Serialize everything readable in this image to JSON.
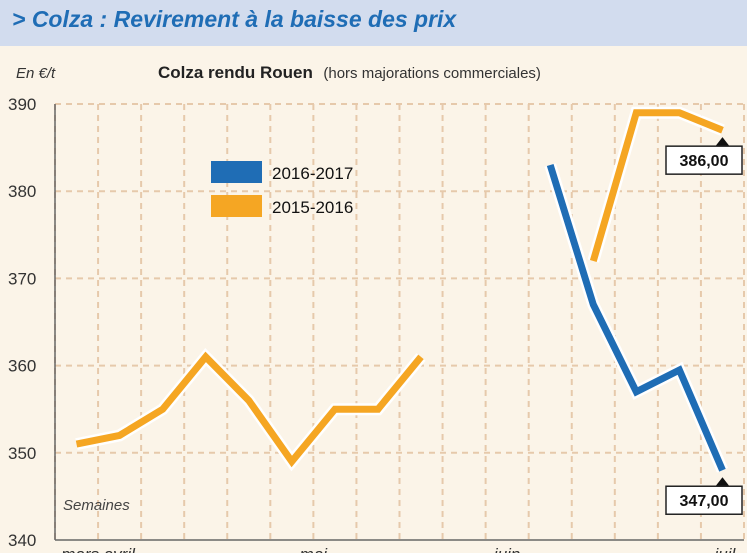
{
  "header": {
    "title": "> Colza : Revirement à la baisse des prix"
  },
  "chart_data": {
    "type": "line",
    "unit_label": "En €/t",
    "title": "Colza rendu Rouen",
    "subtitle": "(hors majorations commerciales)",
    "xlabel": "Semaines",
    "ylim": [
      340,
      390
    ],
    "yticks": [
      340,
      350,
      360,
      370,
      380,
      390
    ],
    "x_range": [
      0,
      16
    ],
    "x_tick_labels": [
      {
        "label": "mars avril",
        "x": 1
      },
      {
        "label": "mai",
        "x": 6
      },
      {
        "label": "juin",
        "x": 10.5
      },
      {
        "label": "juil.",
        "x": 16
      }
    ],
    "grid": true,
    "legend_position": "upper-left",
    "series": [
      {
        "name": "2016-2017",
        "color": "#1f6db5",
        "points": [
          [
            11.5,
            383
          ],
          [
            12.5,
            367
          ],
          [
            13.5,
            357
          ],
          [
            14.5,
            359.5
          ],
          [
            15.5,
            348
          ]
        ],
        "end_label": "347,00"
      },
      {
        "name": "2015-2016",
        "color": "#f5a623",
        "points": [
          [
            0.5,
            351
          ],
          [
            1.5,
            352
          ],
          [
            2.5,
            355
          ],
          [
            3.5,
            361
          ],
          [
            4.5,
            356
          ],
          [
            5.5,
            349
          ],
          [
            6.5,
            355
          ],
          [
            7.5,
            355
          ],
          [
            8.5,
            361
          ],
          [
            12.5,
            372
          ],
          [
            13.5,
            389
          ],
          [
            14.5,
            389
          ],
          [
            15.5,
            387
          ]
        ],
        "breaks_after": [
          8
        ],
        "end_label": "386,00"
      }
    ]
  }
}
